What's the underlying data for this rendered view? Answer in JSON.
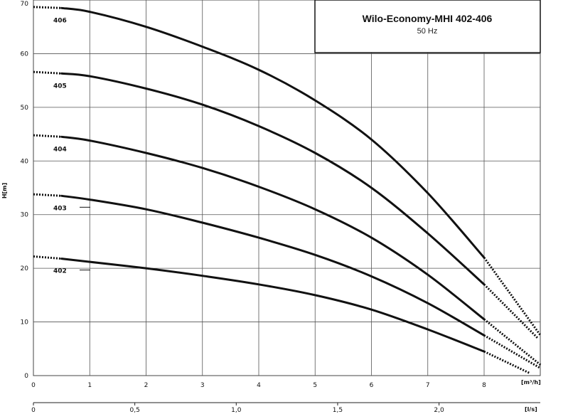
{
  "chart_data": {
    "type": "line",
    "title": "Wilo-Economy-MHI 402-406",
    "subtitle": "50 Hz",
    "ylabel": "H[m]",
    "xlabel": "[m³/h]",
    "x2label": "[l/s]",
    "xlim": [
      0,
      9
    ],
    "ylim": [
      0,
      70
    ],
    "xticks": [
      "0",
      "1",
      "2",
      "3",
      "4",
      "5",
      "6",
      "7",
      "8"
    ],
    "yticks": [
      "0",
      "10",
      "20",
      "30",
      "40",
      "50",
      "60",
      "70"
    ],
    "x2ticks": [
      "0",
      "0,5",
      "1,0",
      "1,5",
      "2,0"
    ],
    "x2tick_values": [
      0,
      1.8,
      3.6,
      5.4,
      7.2
    ],
    "grid": true,
    "series": [
      {
        "name": "402",
        "solid": [
          [
            0.5,
            21.8
          ],
          [
            1,
            21.2
          ],
          [
            2,
            20.0
          ],
          [
            3,
            18.6
          ],
          [
            4,
            17.0
          ],
          [
            5,
            15.0
          ],
          [
            6,
            12.3
          ],
          [
            7,
            8.6
          ],
          [
            8.0,
            4.5
          ]
        ],
        "dotted_start": [
          [
            0.0,
            22.2
          ],
          [
            0.5,
            21.8
          ]
        ],
        "dotted_end": [
          [
            8.0,
            4.5
          ],
          [
            8.8,
            0.5
          ]
        ]
      },
      {
        "name": "403",
        "solid": [
          [
            0.5,
            33.5
          ],
          [
            1,
            32.8
          ],
          [
            2,
            31.0
          ],
          [
            3,
            28.5
          ],
          [
            4,
            25.7
          ],
          [
            5,
            22.5
          ],
          [
            6,
            18.5
          ],
          [
            7,
            13.5
          ],
          [
            8.0,
            7.5
          ]
        ],
        "dotted_start": [
          [
            0.0,
            33.8
          ],
          [
            0.5,
            33.5
          ]
        ],
        "dotted_end": [
          [
            8.0,
            7.5
          ],
          [
            8.98,
            1.5
          ]
        ]
      },
      {
        "name": "404",
        "solid": [
          [
            0.5,
            44.5
          ],
          [
            1,
            43.8
          ],
          [
            2,
            41.5
          ],
          [
            3,
            38.7
          ],
          [
            4,
            35.2
          ],
          [
            5,
            31.0
          ],
          [
            6,
            25.7
          ],
          [
            7,
            18.8
          ],
          [
            8.0,
            10.5
          ]
        ],
        "dotted_start": [
          [
            0.0,
            44.8
          ],
          [
            0.5,
            44.5
          ]
        ],
        "dotted_end": [
          [
            8.0,
            10.5
          ],
          [
            9.0,
            2.0
          ]
        ]
      },
      {
        "name": "405",
        "solid": [
          [
            0.5,
            56.3
          ],
          [
            1,
            55.8
          ],
          [
            2,
            53.5
          ],
          [
            3,
            50.5
          ],
          [
            4,
            46.5
          ],
          [
            5,
            41.5
          ],
          [
            6,
            35.0
          ],
          [
            7,
            26.5
          ],
          [
            8.0,
            17.0
          ]
        ],
        "dotted_start": [
          [
            0.0,
            56.6
          ],
          [
            0.5,
            56.3
          ]
        ],
        "dotted_end": [
          [
            8.0,
            17.0
          ],
          [
            8.95,
            7.0
          ]
        ]
      },
      {
        "name": "406",
        "solid": [
          [
            0.5,
            68.5
          ],
          [
            1,
            67.8
          ],
          [
            2,
            65.0
          ],
          [
            3,
            61.3
          ],
          [
            4,
            57.0
          ],
          [
            5,
            51.3
          ],
          [
            6,
            44.0
          ],
          [
            7,
            34.0
          ],
          [
            8.0,
            22.0
          ]
        ],
        "dotted_start": [
          [
            0.0,
            68.7
          ],
          [
            0.5,
            68.5
          ]
        ],
        "dotted_end": [
          [
            8.0,
            22.0
          ],
          [
            9.0,
            7.5
          ]
        ]
      }
    ]
  }
}
